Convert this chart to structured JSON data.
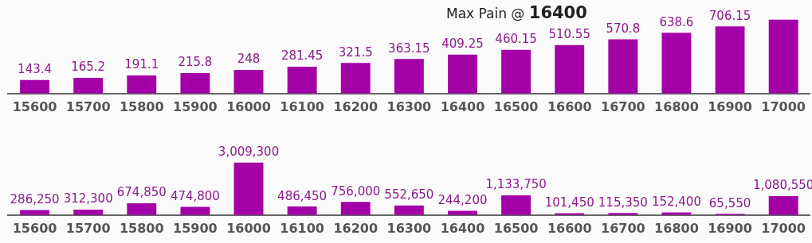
{
  "chart_data": [
    {
      "type": "bar",
      "title": "Max Pain @ 16400",
      "categories": [
        "15600",
        "15700",
        "15800",
        "15900",
        "16000",
        "16100",
        "16200",
        "16300",
        "16400",
        "16500",
        "16600",
        "16700",
        "16800",
        "16900",
        "17000"
      ],
      "values": [
        143.4,
        165.2,
        191.1,
        215.8,
        248,
        281.45,
        321.5,
        363.15,
        409.25,
        460.15,
        510.55,
        570.8,
        638.6,
        706.15,
        776
      ],
      "value_labels": [
        "143.4",
        "165.2",
        "191.1",
        "215.8",
        "248",
        "281.45",
        "321.5",
        "363.15",
        "409.25",
        "460.15",
        "510.55",
        "570.8",
        "638.6",
        "706.15",
        null
      ],
      "color": "#a300a8",
      "tick_labels": "x"
    },
    {
      "type": "bar",
      "categories": [
        "15600",
        "15700",
        "15800",
        "15900",
        "16000",
        "16100",
        "16200",
        "16300",
        "16400",
        "16500",
        "16600",
        "16700",
        "16800",
        "16900",
        "17000"
      ],
      "values": [
        286250,
        312300,
        674850,
        474800,
        3009300,
        486450,
        756000,
        552650,
        244200,
        1133750,
        101450,
        115350,
        152400,
        65550,
        1080550
      ],
      "value_labels": [
        "286,250",
        "312,300",
        "674,850",
        "474,800",
        "3,009,300",
        "486,450",
        "756,000",
        "552,650",
        "244,200",
        "1,133,750",
        "101,450",
        "115,350",
        "152,400",
        "65,550",
        "1,080,550"
      ],
      "color": "#a300a8",
      "tick_labels": "x"
    }
  ]
}
